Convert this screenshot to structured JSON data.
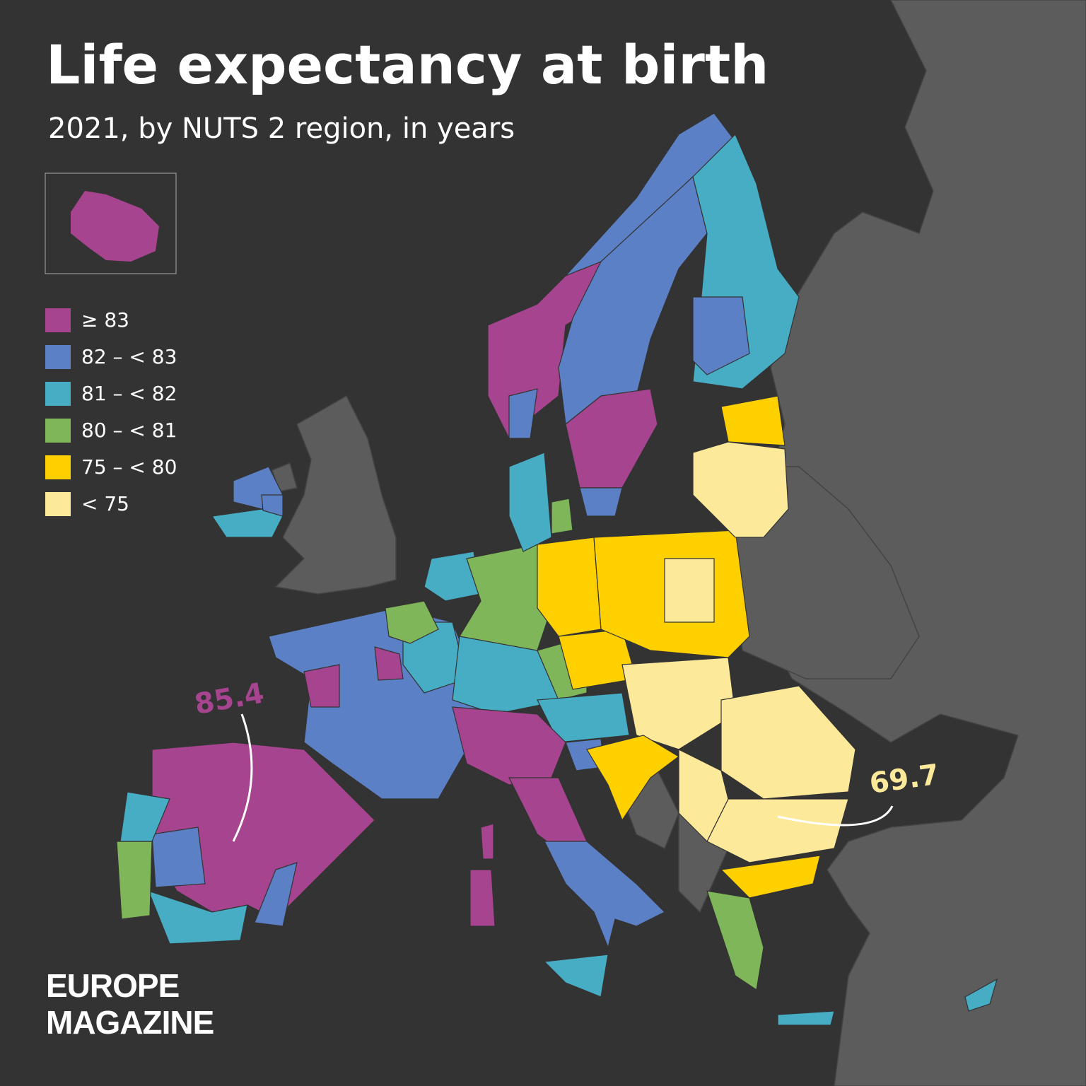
{
  "header": {
    "title": "Life expectancy at birth",
    "subtitle": "2021, by NUTS 2 region, in years"
  },
  "legend": [
    {
      "label": "≥ 83",
      "color": "#a6448f"
    },
    {
      "label": "82 – < 83",
      "color": "#5b80c6"
    },
    {
      "label": "81 – < 82",
      "color": "#46adc4"
    },
    {
      "label": "80 – < 81",
      "color": "#7fb65a"
    },
    {
      "label": "75 – < 80",
      "color": "#fed000"
    },
    {
      "label": "< 75",
      "color": "#fde99a"
    }
  ],
  "annotations": [
    {
      "text": 85.4,
      "color": "#a6448f"
    },
    {
      "text": 69.7,
      "color": "#fde99a"
    }
  ],
  "brand": [
    "EUROPE",
    "MAGAZINE"
  ]
}
